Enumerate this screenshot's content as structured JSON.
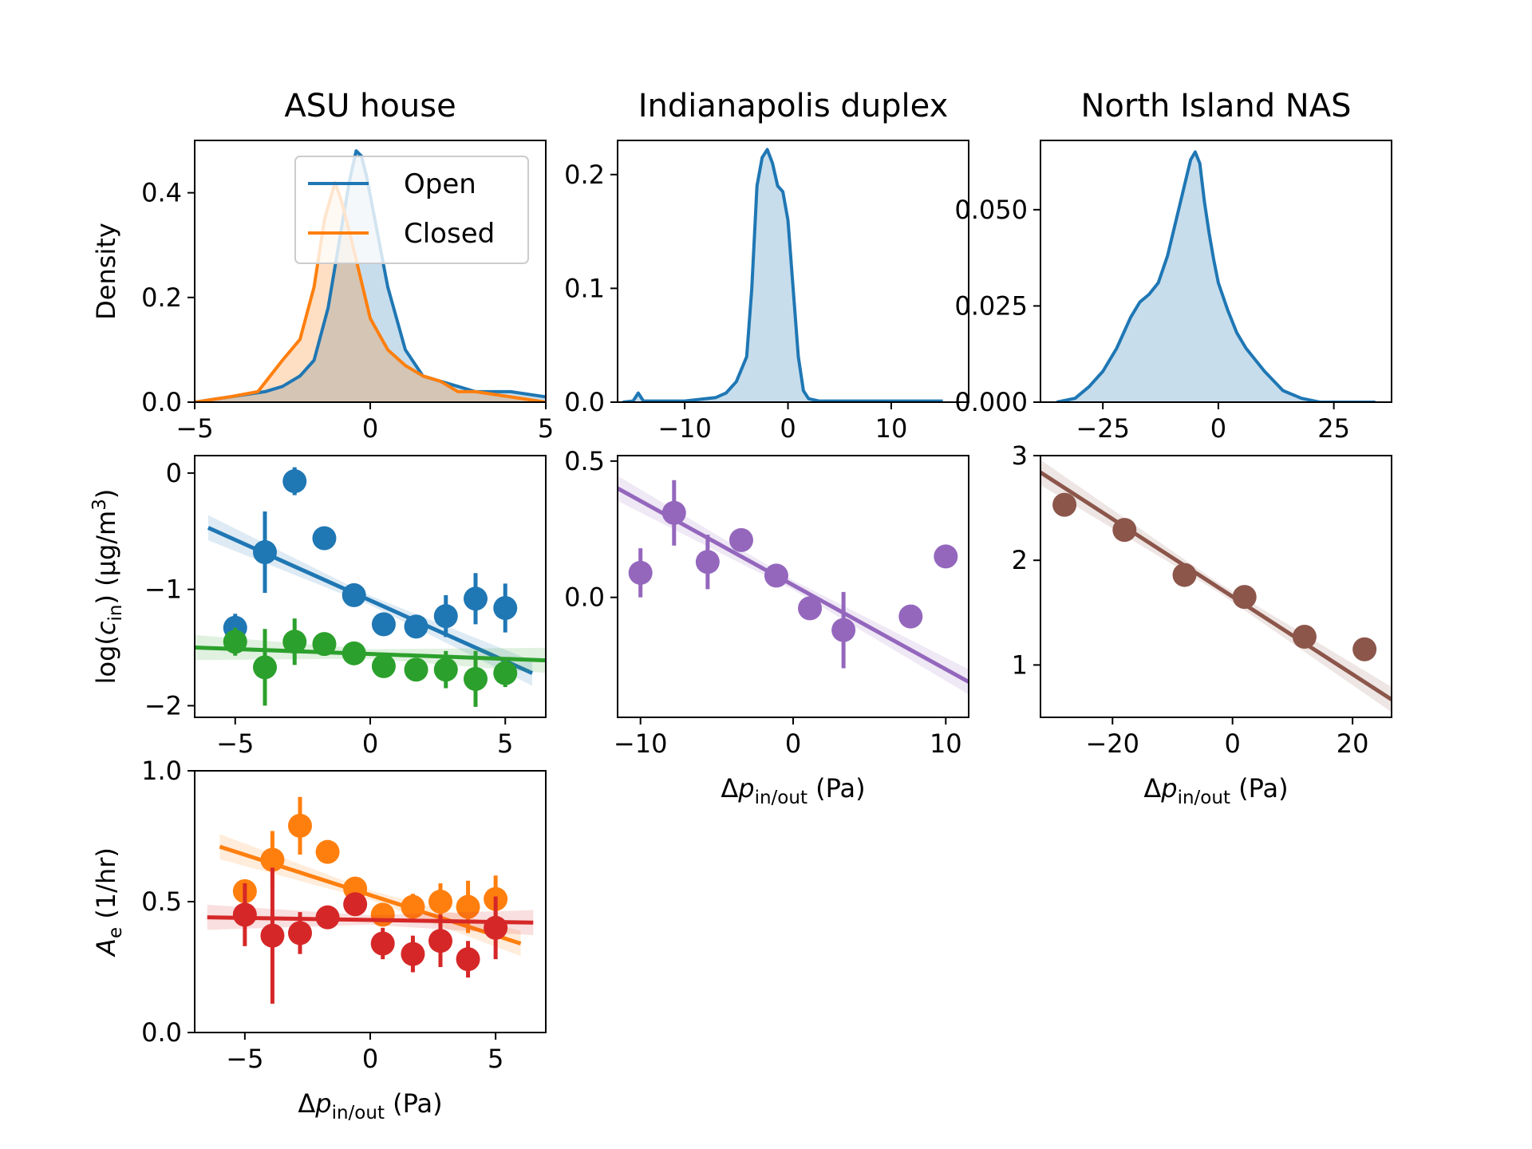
{
  "chart_data": [
    {
      "id": "asu-density",
      "type": "area",
      "title": "ASU house",
      "xlabel": "",
      "ylabel": "Density",
      "xlim": [
        -5,
        5
      ],
      "ylim": [
        0,
        0.5
      ],
      "xticks": [
        {
          "v": -5,
          "label": "−5"
        },
        {
          "v": 0,
          "label": "0"
        },
        {
          "v": 5,
          "label": "5"
        }
      ],
      "yticks": [
        {
          "v": 0,
          "label": "0.0"
        },
        {
          "v": 0.2,
          "label": "0.2"
        },
        {
          "v": 0.4,
          "label": "0.4"
        }
      ],
      "legend": {
        "placement": "upper-right",
        "entries": [
          {
            "name": "Open",
            "color": "#1f77b4"
          },
          {
            "name": "Closed",
            "color": "#ff7f0e"
          }
        ]
      },
      "series": [
        {
          "name": "Open",
          "color": "#1f77b4",
          "x": [
            -5,
            -4,
            -3,
            -2.5,
            -2,
            -1.6,
            -1.2,
            -0.9,
            -0.6,
            -0.4,
            -0.25,
            -0.1,
            0.1,
            0.5,
            1,
            1.5,
            2,
            2.5,
            3,
            4,
            5
          ],
          "y": [
            0,
            0.01,
            0.02,
            0.03,
            0.05,
            0.08,
            0.18,
            0.3,
            0.42,
            0.48,
            0.47,
            0.43,
            0.36,
            0.22,
            0.1,
            0.05,
            0.04,
            0.03,
            0.02,
            0.02,
            0.01
          ]
        },
        {
          "name": "Closed",
          "color": "#ff7f0e",
          "x": [
            -5,
            -4,
            -3.2,
            -2.5,
            -2,
            -1.6,
            -1.3,
            -1,
            -0.8,
            -0.5,
            0,
            0.5,
            1,
            1.5,
            2,
            2.5,
            3,
            4,
            5
          ],
          "y": [
            0,
            0.01,
            0.02,
            0.08,
            0.12,
            0.22,
            0.35,
            0.42,
            0.38,
            0.3,
            0.16,
            0.1,
            0.07,
            0.05,
            0.04,
            0.02,
            0.02,
            0.01,
            0
          ]
        }
      ]
    },
    {
      "id": "indy-density",
      "type": "area",
      "title": "Indianapolis duplex",
      "xlabel": "",
      "ylabel": "",
      "xlim": [
        -16.5,
        17.5
      ],
      "ylim": [
        0,
        0.23
      ],
      "xticks": [
        {
          "v": -10,
          "label": "−10"
        },
        {
          "v": 0,
          "label": "0"
        },
        {
          "v": 10,
          "label": "10"
        }
      ],
      "yticks": [
        {
          "v": 0,
          "label": "0.0"
        },
        {
          "v": 0.1,
          "label": "0.1"
        },
        {
          "v": 0.2,
          "label": "0.2"
        }
      ],
      "series": [
        {
          "name": "",
          "color": "#1f77b4",
          "x": [
            -16,
            -15,
            -14.5,
            -14,
            -13,
            -10,
            -7,
            -6,
            -5,
            -4,
            -3.5,
            -3,
            -2.5,
            -2,
            -1.5,
            -1,
            -0.5,
            0,
            0.5,
            1,
            1.5,
            2,
            3,
            5,
            8,
            10,
            12,
            15
          ],
          "y": [
            0,
            0.001,
            0.008,
            0.001,
            0.001,
            0.001,
            0.004,
            0.008,
            0.018,
            0.04,
            0.1,
            0.19,
            0.215,
            0.222,
            0.21,
            0.19,
            0.185,
            0.16,
            0.1,
            0.04,
            0.01,
            0.003,
            0.001,
            0.001,
            0.001,
            0.001,
            0.001,
            0.001
          ]
        }
      ]
    },
    {
      "id": "nas-density",
      "type": "area",
      "title": "North Island NAS",
      "xlabel": "",
      "ylabel": "",
      "xlim": [
        -38.5,
        37.5
      ],
      "ylim": [
        0,
        0.068
      ],
      "xticks": [
        {
          "v": -25,
          "label": "−25"
        },
        {
          "v": 0,
          "label": "0"
        },
        {
          "v": 25,
          "label": "25"
        }
      ],
      "yticks": [
        {
          "v": 0,
          "label": "0.000"
        },
        {
          "v": 0.025,
          "label": "0.025"
        },
        {
          "v": 0.05,
          "label": "0.050"
        }
      ],
      "series": [
        {
          "name": "",
          "color": "#1f77b4",
          "x": [
            -35,
            -31,
            -28,
            -25,
            -22,
            -19,
            -17,
            -15,
            -13,
            -11,
            -9,
            -7,
            -6,
            -5,
            -4,
            -3,
            -2,
            -1,
            0,
            2,
            4,
            6,
            10,
            14,
            18,
            22,
            26,
            30,
            34
          ],
          "y": [
            0,
            0.001,
            0.004,
            0.008,
            0.014,
            0.022,
            0.026,
            0.028,
            0.031,
            0.038,
            0.048,
            0.058,
            0.063,
            0.065,
            0.062,
            0.052,
            0.044,
            0.037,
            0.031,
            0.024,
            0.018,
            0.014,
            0.008,
            0.003,
            0.001,
            0,
            0,
            0,
            0
          ]
        }
      ]
    },
    {
      "id": "asu-cin",
      "type": "scatter",
      "title": "",
      "xlabel": "",
      "ylabel": "log(cin) (μg/m3)",
      "ylabel_parts": {
        "pre": "log(",
        "var": "c",
        "sub": "in",
        "mid": ") (μg/m",
        "sup": "3",
        "post": ")"
      },
      "xlim": [
        -6.5,
        6.5
      ],
      "ylim": [
        -2.1,
        0.15
      ],
      "xticks": [
        {
          "v": -5,
          "label": "−5"
        },
        {
          "v": 0,
          "label": "0"
        },
        {
          "v": 5,
          "label": "5"
        }
      ],
      "yticks": [
        {
          "v": -2,
          "label": "−2"
        },
        {
          "v": -1,
          "label": "−1"
        },
        {
          "v": 0,
          "label": "0"
        }
      ],
      "series": [
        {
          "name": "Open",
          "color": "#1f77b4",
          "x": [
            -5,
            -3.9,
            -2.8,
            -1.7,
            -0.6,
            0.5,
            1.7,
            2.8,
            3.9,
            5
          ],
          "y": [
            -1.33,
            -0.68,
            -0.07,
            -0.56,
            -1.05,
            -1.3,
            -1.32,
            -1.23,
            -1.08,
            -1.16
          ],
          "err": [
            0.12,
            0.35,
            0.12,
            0.1,
            0.04,
            0.04,
            0.07,
            0.18,
            0.22,
            0.21
          ],
          "fit": [
            -6,
            -0.47,
            6,
            -1.72
          ]
        },
        {
          "name": "Closed",
          "color": "#2ca02c",
          "x": [
            -5,
            -3.9,
            -2.8,
            -1.7,
            -0.6,
            0.5,
            1.7,
            2.8,
            3.9,
            5
          ],
          "y": [
            -1.45,
            -1.67,
            -1.45,
            -1.47,
            -1.55,
            -1.66,
            -1.69,
            -1.69,
            -1.77,
            -1.72
          ],
          "err": [
            0.12,
            0.33,
            0.2,
            0.05,
            0.03,
            0.03,
            0.1,
            0.16,
            0.24,
            0.12
          ],
          "fit": [
            -6.5,
            -1.5,
            6.5,
            -1.61
          ]
        }
      ]
    },
    {
      "id": "indy-cin",
      "type": "scatter",
      "title": "",
      "xlabel": "Δpin/out (Pa)",
      "ylabel": "",
      "xlim": [
        -11.5,
        11.5
      ],
      "ylim": [
        -0.44,
        0.52
      ],
      "xticks": [
        {
          "v": -10,
          "label": "−10"
        },
        {
          "v": 0,
          "label": "0"
        },
        {
          "v": 10,
          "label": "10"
        }
      ],
      "yticks": [
        {
          "v": 0,
          "label": "0.0"
        },
        {
          "v": 0.5,
          "label": "0.5"
        }
      ],
      "series": [
        {
          "name": "",
          "color": "#9467bd",
          "x": [
            -10,
            -7.8,
            -5.6,
            -3.4,
            -1.1,
            1.1,
            3.3,
            7.7,
            10
          ],
          "y": [
            0.09,
            0.31,
            0.13,
            0.21,
            0.08,
            -0.04,
            -0.12,
            -0.07,
            0.15
          ],
          "err": [
            0.09,
            0.12,
            0.1,
            0.02,
            0.02,
            0.02,
            0.14,
            0.02,
            0.02
          ],
          "fit": [
            -11.5,
            0.4,
            11.5,
            -0.31
          ]
        }
      ]
    },
    {
      "id": "nas-cin",
      "type": "scatter",
      "title": "",
      "xlabel": "Δpin/out (Pa)",
      "ylabel": "",
      "xlim": [
        -32,
        26.5
      ],
      "ylim": [
        0.5,
        3.0
      ],
      "xticks": [
        {
          "v": -20,
          "label": "−20"
        },
        {
          "v": 0,
          "label": "0"
        },
        {
          "v": 20,
          "label": "20"
        }
      ],
      "yticks": [
        {
          "v": 1,
          "label": "1"
        },
        {
          "v": 2,
          "label": "2"
        },
        {
          "v": 3,
          "label": "3"
        }
      ],
      "series": [
        {
          "name": "",
          "color": "#8c564b",
          "x": [
            -28,
            -18,
            -8,
            2,
            12,
            22
          ],
          "y": [
            2.53,
            2.29,
            1.86,
            1.65,
            1.27,
            1.15
          ],
          "err": [
            0,
            0,
            0,
            0,
            0,
            0
          ],
          "fit": [
            -32,
            2.84,
            26.5,
            0.67
          ]
        }
      ]
    },
    {
      "id": "asu-ae",
      "type": "scatter",
      "title": "",
      "xlabel": "Δpin/out (Pa)",
      "ylabel": "Ae (1/hr)",
      "xlim": [
        -7,
        7
      ],
      "ylim": [
        0,
        1
      ],
      "xticks": [
        {
          "v": -5,
          "label": "−5"
        },
        {
          "v": 0,
          "label": "0"
        },
        {
          "v": 5,
          "label": "5"
        }
      ],
      "yticks": [
        {
          "v": 0,
          "label": "0.0"
        },
        {
          "v": 0.5,
          "label": "0.5"
        },
        {
          "v": 1,
          "label": "1.0"
        }
      ],
      "series": [
        {
          "name": "Closed",
          "color": "#ff7f0e",
          "x": [
            -5,
            -3.9,
            -2.8,
            -1.7,
            -0.6,
            0.5,
            1.7,
            2.8,
            3.9,
            5
          ],
          "y": [
            0.54,
            0.66,
            0.79,
            0.69,
            0.55,
            0.45,
            0.48,
            0.5,
            0.48,
            0.51
          ],
          "err": [
            0.03,
            0.11,
            0.11,
            0.04,
            0.02,
            0.02,
            0.05,
            0.07,
            0.1,
            0.09
          ],
          "fit": [
            -6,
            0.71,
            6,
            0.34
          ]
        },
        {
          "name": "Open",
          "color": "#d62728",
          "x": [
            -5,
            -3.9,
            -2.8,
            -1.7,
            -0.6,
            0.5,
            1.7,
            2.8,
            3.9,
            5
          ],
          "y": [
            0.45,
            0.37,
            0.38,
            0.44,
            0.49,
            0.34,
            0.3,
            0.35,
            0.28,
            0.4
          ],
          "err": [
            0.12,
            0.26,
            0.08,
            0.03,
            0.03,
            0.06,
            0.07,
            0.1,
            0.07,
            0.12
          ],
          "fit": [
            -6.5,
            0.44,
            6.5,
            0.42
          ]
        }
      ]
    }
  ]
}
